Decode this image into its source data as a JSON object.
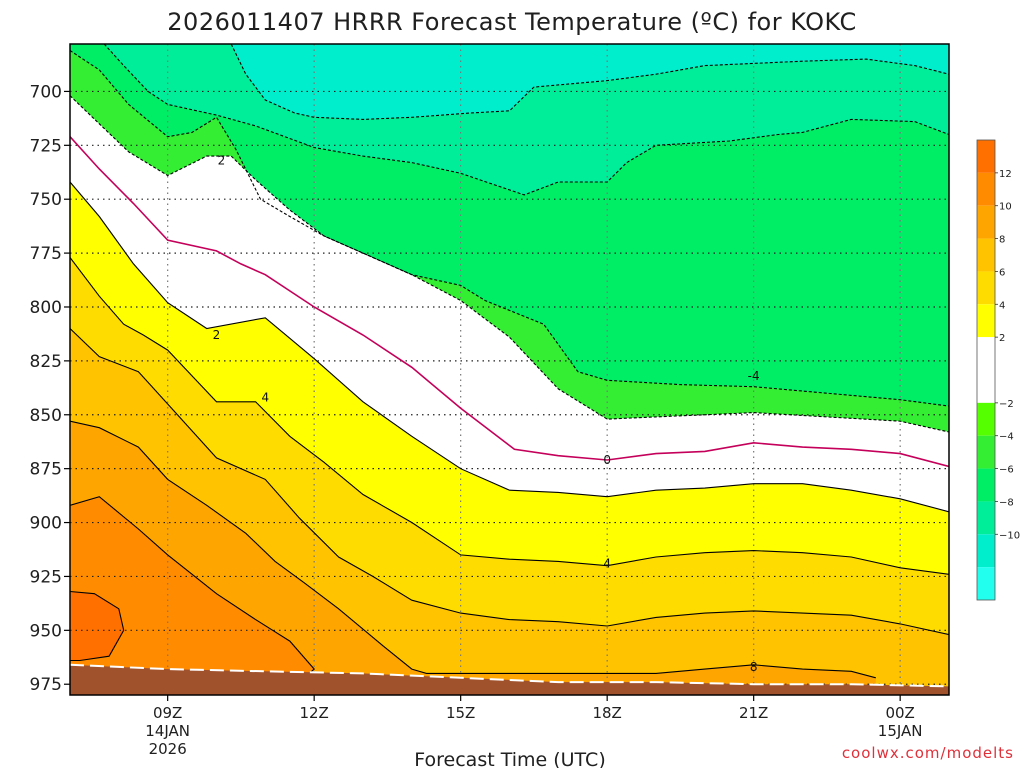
{
  "chart_data": {
    "type": "contour",
    "title": "2026011407 HRRR Forecast Temperature (ºC) for KOKC",
    "xlabel": "Forecast Time (UTC)",
    "ylabel": "",
    "credit": "coolwx.com/modelts",
    "x_ticks": [
      {
        "hour": 9,
        "lines": [
          "09Z",
          "14JAN",
          "2026"
        ]
      },
      {
        "hour": 12,
        "lines": [
          "12Z"
        ]
      },
      {
        "hour": 15,
        "lines": [
          "15Z"
        ]
      },
      {
        "hour": 18,
        "lines": [
          "18Z"
        ]
      },
      {
        "hour": 21,
        "lines": [
          "21Z"
        ]
      },
      {
        "hour": 24,
        "lines": [
          "00Z",
          "15JAN"
        ]
      }
    ],
    "xlim_hours": [
      7,
      25
    ],
    "y_axis": "pressure (hPa)",
    "y_ticks": [
      700,
      725,
      750,
      775,
      800,
      825,
      850,
      875,
      900,
      925,
      950,
      975
    ],
    "ylim": [
      678,
      980
    ],
    "colorbar": {
      "ticks": [
        12,
        10,
        8,
        6,
        4,
        2,
        -2,
        -4,
        -6,
        -8,
        -10
      ],
      "levels": [
        {
          "from": 12,
          "to": 14,
          "color": "#ff7000"
        },
        {
          "from": 10,
          "to": 12,
          "color": "#ff8c00"
        },
        {
          "from": 8,
          "to": 10,
          "color": "#ffa500"
        },
        {
          "from": 6,
          "to": 8,
          "color": "#ffc300"
        },
        {
          "from": 4,
          "to": 6,
          "color": "#ffdc00"
        },
        {
          "from": 2,
          "to": 4,
          "color": "#ffff00"
        },
        {
          "from": -2,
          "to": 2,
          "color": "#ffffff"
        },
        {
          "from": -4,
          "to": -2,
          "color": "#55ff00"
        },
        {
          "from": -6,
          "to": -4,
          "color": "#33ee33"
        },
        {
          "from": -8,
          "to": -6,
          "color": "#00ee66"
        },
        {
          "from": -10,
          "to": -8,
          "color": "#00ee99"
        },
        {
          "from": -12,
          "to": -10,
          "color": "#00eecc"
        },
        {
          "from": -14,
          "to": -12,
          "color": "#22ffee"
        }
      ]
    },
    "isotherms": [
      {
        "temp": -10,
        "style": "dashed",
        "color": "#000000",
        "points": [
          [
            10.3,
            678
          ],
          [
            10.6,
            692
          ],
          [
            11,
            704
          ],
          [
            11.6,
            710
          ],
          [
            12,
            712
          ],
          [
            13,
            713
          ],
          [
            14,
            712
          ],
          [
            15.2,
            710
          ],
          [
            16,
            709
          ],
          [
            16.5,
            698
          ],
          [
            18,
            695
          ],
          [
            19,
            692
          ],
          [
            20,
            688
          ],
          [
            21,
            687
          ],
          [
            22,
            686
          ],
          [
            23.3,
            685
          ],
          [
            24.3,
            688
          ],
          [
            25,
            692
          ]
        ]
      },
      {
        "temp": -8,
        "style": "dashed",
        "color": "#000000",
        "points": [
          [
            7.7,
            678
          ],
          [
            8.1,
            688
          ],
          [
            8.6,
            700
          ],
          [
            9,
            706
          ],
          [
            10,
            711
          ],
          [
            10.8,
            716
          ],
          [
            12,
            726
          ],
          [
            13,
            730
          ],
          [
            14,
            733
          ],
          [
            15,
            738
          ],
          [
            16.3,
            748
          ],
          [
            17,
            742
          ],
          [
            18,
            742
          ],
          [
            18.4,
            733
          ],
          [
            19,
            725
          ],
          [
            20.5,
            723
          ],
          [
            21.5,
            720
          ],
          [
            22,
            719
          ],
          [
            23,
            713
          ],
          [
            24.3,
            714
          ],
          [
            25,
            720
          ]
        ]
      },
      {
        "temp": -6,
        "style": "dashed",
        "color": "#000000",
        "points": [
          [
            7,
            681
          ],
          [
            7.6,
            690
          ],
          [
            8.2,
            706
          ],
          [
            9,
            721
          ],
          [
            9.5,
            719
          ],
          [
            10,
            712
          ],
          [
            10.4,
            727
          ],
          [
            10.9,
            750
          ],
          [
            11.5,
            758
          ],
          [
            12.2,
            767
          ],
          [
            13,
            775
          ],
          [
            14,
            785
          ],
          [
            15,
            790
          ],
          [
            15.5,
            797
          ],
          [
            16.7,
            808
          ],
          [
            17.4,
            830
          ],
          [
            18,
            834
          ],
          [
            19.5,
            836
          ],
          [
            21,
            837
          ],
          [
            22.5,
            840
          ],
          [
            24,
            843
          ],
          [
            25,
            846
          ]
        ]
      },
      {
        "temp": -4,
        "style": "dashed",
        "color": "#000000",
        "points": [
          [
            7,
            702
          ],
          [
            7.6,
            715
          ],
          [
            8.2,
            728
          ],
          [
            9,
            739
          ],
          [
            9.8,
            730
          ],
          [
            10.3,
            730
          ],
          [
            10.8,
            741
          ],
          [
            11.5,
            755
          ],
          [
            12.2,
            767
          ],
          [
            13,
            775
          ],
          [
            14,
            785
          ],
          [
            15,
            797
          ],
          [
            16,
            814
          ],
          [
            17,
            838
          ],
          [
            18,
            852
          ],
          [
            19,
            851
          ],
          [
            20,
            850
          ],
          [
            21,
            849
          ],
          [
            22.5,
            851
          ],
          [
            24,
            853
          ],
          [
            25,
            858
          ]
        ]
      },
      {
        "temp": 0,
        "style": "solid",
        "color": "#c4005a",
        "points": [
          [
            7,
            721
          ],
          [
            7.6,
            736
          ],
          [
            8.3,
            752
          ],
          [
            9,
            769
          ],
          [
            10,
            774
          ],
          [
            10.5,
            780
          ],
          [
            11,
            785
          ],
          [
            12,
            800
          ],
          [
            13,
            813
          ],
          [
            14,
            828
          ],
          [
            15,
            847
          ],
          [
            16.1,
            866
          ],
          [
            17,
            869
          ],
          [
            18,
            871
          ],
          [
            19,
            868
          ],
          [
            20,
            867
          ],
          [
            21,
            863
          ],
          [
            22,
            865
          ],
          [
            23,
            866
          ],
          [
            24,
            868
          ],
          [
            25,
            874
          ]
        ]
      },
      {
        "temp": 2,
        "style": "solid",
        "color": "#000000",
        "points": [
          [
            7,
            742
          ],
          [
            7.6,
            758
          ],
          [
            8.3,
            780
          ],
          [
            9,
            798
          ],
          [
            9.8,
            810
          ],
          [
            11,
            805
          ],
          [
            12,
            824
          ],
          [
            13,
            844
          ],
          [
            14,
            860
          ],
          [
            15,
            875
          ],
          [
            16,
            885
          ],
          [
            17,
            886
          ],
          [
            18,
            888
          ],
          [
            19,
            885
          ],
          [
            20,
            884
          ],
          [
            21,
            882
          ],
          [
            22,
            882
          ],
          [
            23,
            885
          ],
          [
            24,
            889
          ],
          [
            25,
            895
          ]
        ]
      },
      {
        "temp": 4,
        "style": "solid",
        "color": "#000000",
        "points": [
          [
            7,
            777
          ],
          [
            7.6,
            795
          ],
          [
            8.1,
            808
          ],
          [
            8.5,
            813
          ],
          [
            9,
            820
          ],
          [
            10,
            844
          ],
          [
            10.8,
            844
          ],
          [
            11.5,
            860
          ],
          [
            12.2,
            872
          ],
          [
            13,
            887
          ],
          [
            14,
            900
          ],
          [
            15,
            915
          ],
          [
            16,
            917
          ],
          [
            17,
            918
          ],
          [
            18,
            920
          ],
          [
            19,
            916
          ],
          [
            20,
            914
          ],
          [
            21,
            913
          ],
          [
            22,
            914
          ],
          [
            23,
            916
          ],
          [
            24,
            921
          ],
          [
            25,
            924
          ]
        ]
      },
      {
        "temp": 6,
        "style": "solid",
        "color": "#000000",
        "points": [
          [
            7,
            810
          ],
          [
            7.6,
            823
          ],
          [
            8.4,
            830
          ],
          [
            9,
            845
          ],
          [
            10,
            870
          ],
          [
            11,
            880
          ],
          [
            11.7,
            898
          ],
          [
            12.5,
            916
          ],
          [
            13.2,
            925
          ],
          [
            14,
            936
          ],
          [
            15,
            942
          ],
          [
            16,
            945
          ],
          [
            17,
            946
          ],
          [
            18,
            948
          ],
          [
            19,
            944
          ],
          [
            20,
            942
          ],
          [
            21,
            941
          ],
          [
            22,
            942
          ],
          [
            23,
            943
          ],
          [
            24,
            947
          ],
          [
            25,
            952
          ]
        ]
      },
      {
        "temp": 8,
        "style": "solid",
        "color": "#000000",
        "points": [
          [
            7,
            853
          ],
          [
            7.6,
            856
          ],
          [
            8.4,
            865
          ],
          [
            9,
            880
          ],
          [
            9.8,
            892
          ],
          [
            10.6,
            905
          ],
          [
            11.2,
            918
          ],
          [
            11.8,
            928
          ],
          [
            12.5,
            940
          ],
          [
            13.4,
            957
          ],
          [
            14,
            968
          ],
          [
            14.3,
            970
          ],
          [
            16,
            970
          ],
          [
            17,
            970
          ],
          [
            18,
            970
          ],
          [
            19,
            970
          ],
          [
            20,
            968
          ],
          [
            21,
            966
          ],
          [
            22,
            968
          ],
          [
            23,
            969
          ],
          [
            23.5,
            972
          ]
        ]
      },
      {
        "temp": 10,
        "style": "solid",
        "color": "#000000",
        "points": [
          [
            7,
            892
          ],
          [
            7.6,
            888
          ],
          [
            8.4,
            903
          ],
          [
            9,
            915
          ],
          [
            10,
            933
          ],
          [
            10.8,
            945
          ],
          [
            11.5,
            955
          ],
          [
            12,
            968
          ],
          [
            11.9,
            970
          ],
          [
            11.2,
            971
          ]
        ]
      },
      {
        "temp": 12,
        "style": "solid",
        "color": "#000000",
        "points": [
          [
            7,
            932
          ],
          [
            7.5,
            933
          ],
          [
            8,
            940
          ],
          [
            8.1,
            950
          ],
          [
            7.8,
            962
          ],
          [
            7.2,
            964
          ],
          [
            7,
            964
          ]
        ]
      }
    ],
    "contour_labels": [
      {
        "text": "2",
        "hour": 10.1,
        "p": 732
      },
      {
        "text": "2",
        "hour": 10,
        "p": 813
      },
      {
        "text": "4",
        "hour": 11,
        "p": 842
      },
      {
        "text": "-4",
        "hour": 21,
        "p": 832
      },
      {
        "text": "0",
        "hour": 18,
        "p": 871
      },
      {
        "text": "4",
        "hour": 18,
        "p": 919
      },
      {
        "text": "8",
        "hour": 21,
        "p": 967
      }
    ],
    "ground_level": [
      [
        7,
        966
      ],
      [
        9,
        968
      ],
      [
        11,
        969
      ],
      [
        13,
        970
      ],
      [
        15,
        972
      ],
      [
        17,
        974
      ],
      [
        19,
        974
      ],
      [
        21,
        975
      ],
      [
        23,
        975
      ],
      [
        25,
        976
      ]
    ]
  }
}
